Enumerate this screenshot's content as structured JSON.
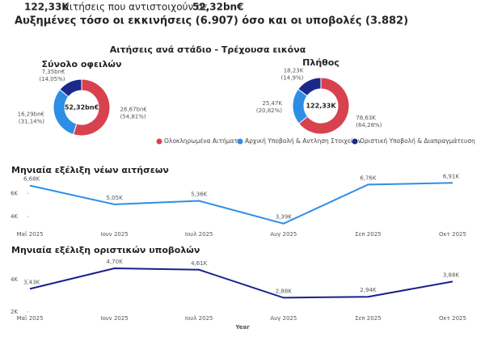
{
  "header": {
    "count": "122,33K",
    "text": "αιτήσεις που αντιστοιχούν σε",
    "amount": "52,32bn€",
    "subtitle": "Αυξημένες τόσο οι εκκινήσεις (6.907) όσο και οι υποβολές (3.882)"
  },
  "section_title": "Αιτήσεις ανά στάδιο - Τρέχουσα εικόνα",
  "chart_data": [
    {
      "type": "donut",
      "title": "Σύνολο οφειλών",
      "center_label": "52,32bn€",
      "categories": [
        "Ολοκληρωμένα Αιτήματα",
        "Αρχική Υποβολή & Αντληση Στοιχείων",
        "Οριστική Υποβολή & Διαπραγμάτευση"
      ],
      "values": [
        28.67,
        16.29,
        7.35
      ],
      "value_labels": [
        "28,67bn€",
        "16,29bn€",
        "7,35bn€"
      ],
      "share_labels": [
        "(54,81%)",
        "(31,14%)",
        "(14,05%)"
      ],
      "colors": [
        "#d8424f",
        "#2d8ee6",
        "#1b2a8a"
      ]
    },
    {
      "type": "donut",
      "title": "Πλήθος",
      "center_label": "122,33K",
      "values": [
        78.63,
        25.47,
        18.23
      ],
      "value_labels": [
        "78,63K",
        "25,47K",
        "18,23K"
      ],
      "share_labels": [
        "(64,28%)",
        "(20,82%)",
        "(14,9%)"
      ],
      "colors": [
        "#d8424f",
        "#2d8ee6",
        "#1b2a8a"
      ]
    },
    {
      "type": "line",
      "title": "Μηνιαία εξέλιξη νέων αιτήσεων",
      "categories": [
        "Μαϊ 2025",
        "Ιουν 2025",
        "Ιουλ 2025",
        "Αυγ 2025",
        "Σεπ 2025",
        "Οκτ 2025"
      ],
      "values": [
        6.68,
        5.05,
        5.36,
        3.39,
        6.76,
        6.91
      ],
      "value_labels": [
        "6,68K",
        "5,05K",
        "5,36K",
        "3,39K",
        "6,76K",
        "6,91K"
      ],
      "color": "#2d8ee6",
      "ylim": [
        3.3,
        7.0
      ],
      "yticks": [
        {
          "value": 4,
          "label": "4K"
        },
        {
          "value": 6,
          "label": "6K"
        }
      ]
    },
    {
      "type": "line",
      "title": "Μηνιαία εξέλιξη οριστικών υποβολών",
      "x_label": "Year",
      "categories": [
        "Μαϊ 2025",
        "Ιουν 2025",
        "Ιουλ 2025",
        "Αυγ 2025",
        "Σεπ 2025",
        "Οκτ 2025"
      ],
      "values": [
        3.43,
        4.7,
        4.61,
        2.88,
        2.94,
        3.88
      ],
      "value_labels": [
        "3,43K",
        "4,70K",
        "4,61K",
        "2,88K",
        "2,94K",
        "3,88K"
      ],
      "color": "#1b1f8a",
      "ylim": [
        2.0,
        5.05
      ],
      "yticks": [
        {
          "value": 2,
          "label": "2K"
        },
        {
          "value": 4,
          "label": "4K"
        }
      ]
    }
  ]
}
